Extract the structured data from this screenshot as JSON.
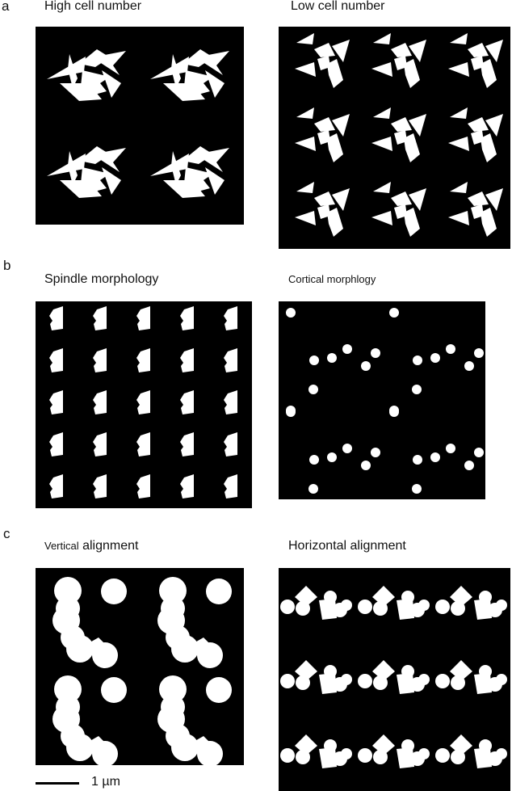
{
  "sections": {
    "a": "a",
    "b": "b",
    "c": "c"
  },
  "panels": {
    "high_cell": "High cell number",
    "low_cell": "Low cell number",
    "spindle": "Spindle morphology",
    "cortical": "Cortical morphlogy",
    "vertical_prefix": "Vertical",
    "vertical_suffix": " alignment",
    "horizontal": "Horizontal alignment"
  },
  "scale_bar": {
    "label": "1 µm"
  },
  "colors": {
    "panel_background": "#000000",
    "shape_fill": "#ffffff"
  }
}
